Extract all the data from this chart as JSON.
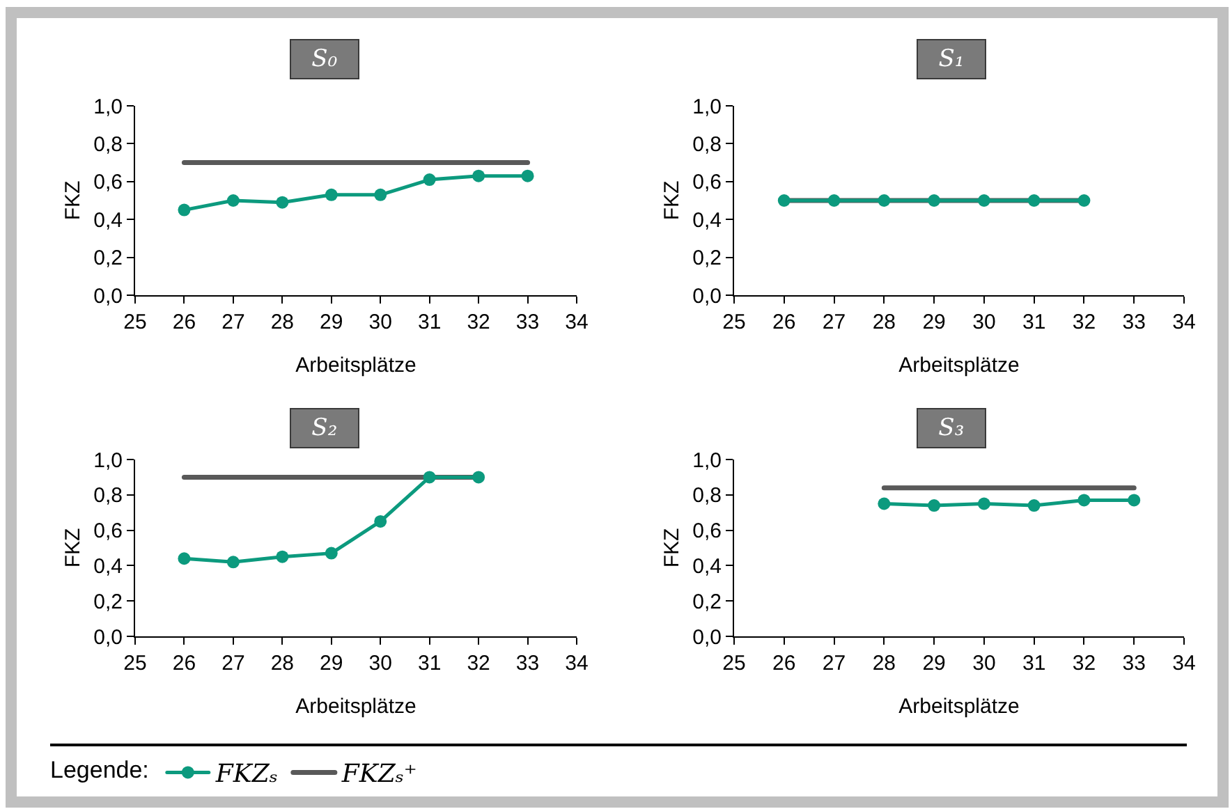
{
  "chart_data": [
    {
      "type": "line",
      "title": "S₀",
      "xlabel": "Arbeitsplätze",
      "ylabel": "FKZ",
      "xlim": [
        25,
        34
      ],
      "xticks": [
        25,
        26,
        27,
        28,
        29,
        30,
        31,
        32,
        33,
        34
      ],
      "ylim": [
        0,
        1
      ],
      "yticks": [
        {
          "value": 0,
          "label": "0,0"
        },
        {
          "value": 0.2,
          "label": "0,2"
        },
        {
          "value": 0.4,
          "label": "0,4"
        },
        {
          "value": 0.6,
          "label": "0,6"
        },
        {
          "value": 0.8,
          "label": "0,8"
        },
        {
          "value": 1,
          "label": "1,0"
        }
      ],
      "marker": "circle",
      "series": [
        {
          "color": "#0c9a7e",
          "x": [
            26,
            27,
            28,
            29,
            30,
            31,
            32,
            33
          ],
          "values": [
            0.45,
            0.5,
            0.49,
            0.53,
            0.53,
            0.61,
            0.63,
            0.63
          ]
        },
        {
          "color": "#595959",
          "marker": "none",
          "x": [
            26,
            33
          ],
          "values": [
            0.7,
            0.7
          ]
        }
      ]
    },
    {
      "type": "line",
      "title": "S₁",
      "xlabel": "Arbeitsplätze",
      "ylabel": "FKZ",
      "xlim": [
        25,
        34
      ],
      "xticks": [
        25,
        26,
        27,
        28,
        29,
        30,
        31,
        32,
        33,
        34
      ],
      "ylim": [
        0,
        1
      ],
      "yticks": [
        {
          "value": 0,
          "label": "0,0"
        },
        {
          "value": 0.2,
          "label": "0,2"
        },
        {
          "value": 0.4,
          "label": "0,4"
        },
        {
          "value": 0.6,
          "label": "0,6"
        },
        {
          "value": 0.8,
          "label": "0,8"
        },
        {
          "value": 1,
          "label": "1,0"
        }
      ],
      "marker": "circle",
      "series": [
        {
          "color": "#0c9a7e",
          "x": [
            26,
            27,
            28,
            29,
            30,
            31,
            32
          ],
          "values": [
            0.5,
            0.5,
            0.5,
            0.5,
            0.5,
            0.5,
            0.5
          ]
        },
        {
          "color": "#595959",
          "marker": "none",
          "x": [
            26,
            32
          ],
          "values": [
            0.5,
            0.5
          ]
        }
      ]
    },
    {
      "type": "line",
      "title": "S₂",
      "xlabel": "Arbeitsplätze",
      "ylabel": "FKZ",
      "xlim": [
        25,
        34
      ],
      "xticks": [
        25,
        26,
        27,
        28,
        29,
        30,
        31,
        32,
        33,
        34
      ],
      "ylim": [
        0,
        1
      ],
      "yticks": [
        {
          "value": 0,
          "label": "0,0"
        },
        {
          "value": 0.2,
          "label": "0,2"
        },
        {
          "value": 0.4,
          "label": "0,4"
        },
        {
          "value": 0.6,
          "label": "0,6"
        },
        {
          "value": 0.8,
          "label": "0,8"
        },
        {
          "value": 1,
          "label": "1,0"
        }
      ],
      "marker": "circle",
      "legend": "bottom",
      "legend_title": "Legende:",
      "series": [
        {
          "name": "FKZₛ",
          "color": "#0c9a7e",
          "x": [
            26,
            27,
            28,
            29,
            30,
            31,
            32
          ],
          "values": [
            0.44,
            0.42,
            0.45,
            0.47,
            0.65,
            0.9,
            0.9
          ]
        },
        {
          "name": "FKZₛ⁺",
          "color": "#595959",
          "marker": "none",
          "x": [
            26,
            32
          ],
          "values": [
            0.9,
            0.9
          ]
        }
      ]
    },
    {
      "type": "line",
      "title": "S₃",
      "xlabel": "Arbeitsplätze",
      "ylabel": "FKZ",
      "xlim": [
        25,
        34
      ],
      "xticks": [
        25,
        26,
        27,
        28,
        29,
        30,
        31,
        32,
        33,
        34
      ],
      "ylim": [
        0,
        1
      ],
      "yticks": [
        {
          "value": 0,
          "label": "0,0"
        },
        {
          "value": 0.2,
          "label": "0,2"
        },
        {
          "value": 0.4,
          "label": "0,4"
        },
        {
          "value": 0.6,
          "label": "0,6"
        },
        {
          "value": 0.8,
          "label": "0,8"
        },
        {
          "value": 1,
          "label": "1,0"
        }
      ],
      "marker": "circle",
      "series": [
        {
          "color": "#0c9a7e",
          "x": [
            28,
            29,
            30,
            31,
            32,
            33
          ],
          "values": [
            0.75,
            0.74,
            0.75,
            0.74,
            0.77,
            0.77
          ]
        },
        {
          "color": "#595959",
          "marker": "none",
          "x": [
            28,
            33
          ],
          "values": [
            0.84,
            0.84
          ]
        }
      ]
    }
  ]
}
